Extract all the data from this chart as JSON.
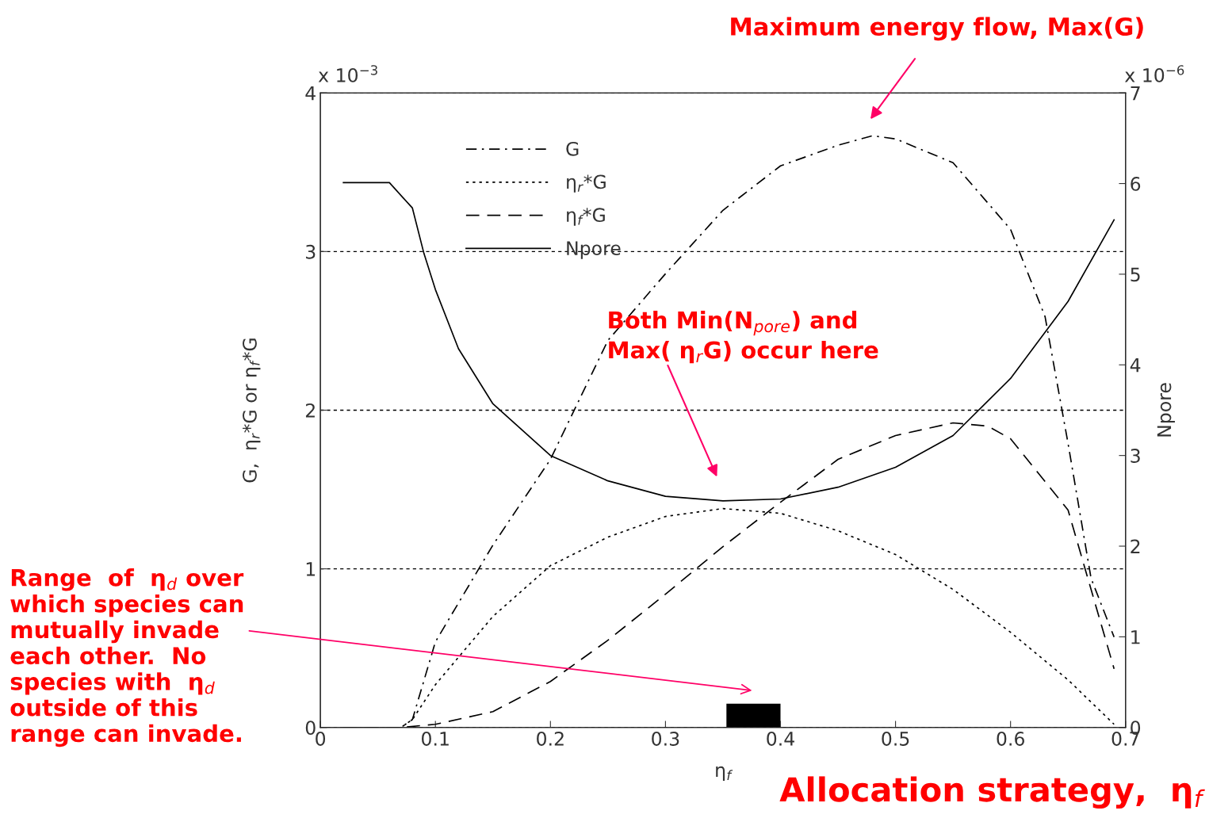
{
  "chart_data": {
    "type": "line",
    "xlabel": "η$_{f}$",
    "ylabel": "G,  η$_{r}$*G or η$_{f}$*G",
    "y2label": "Npore",
    "xlim": [
      0,
      0.7
    ],
    "xticks": [
      0,
      0.1,
      0.2,
      0.3,
      0.4,
      0.5,
      0.6,
      0.7
    ],
    "ylim": [
      0,
      4
    ],
    "yticks": [
      0,
      1,
      2,
      3,
      4
    ],
    "y2lim": [
      0,
      7
    ],
    "y2ticks": [
      0,
      1,
      2,
      3,
      4,
      5,
      6,
      7
    ],
    "grid": "y",
    "legend": "top left",
    "marker": "none",
    "series": [
      {
        "name": "G",
        "color": "#000000",
        "line_style": "dashdot",
        "x": [
          0.02,
          0.07,
          0.08,
          0.1,
          0.15,
          0.2,
          0.25,
          0.3,
          0.35,
          0.4,
          0.45,
          0.48,
          0.5,
          0.55,
          0.6,
          0.63,
          0.65,
          0.67,
          0.69
        ],
        "values": [
          0,
          0,
          0.05,
          0.54,
          1.15,
          1.69,
          2.44,
          2.86,
          3.26,
          3.54,
          3.67,
          3.73,
          3.71,
          3.56,
          3.14,
          2.59,
          1.79,
          0.94,
          0.57
        ]
      },
      {
        "name": "η$_{r}$*G",
        "color": "#000000",
        "line_style": "dotted",
        "x": [
          0.02,
          0.07,
          0.08,
          0.1,
          0.15,
          0.2,
          0.25,
          0.3,
          0.35,
          0.4,
          0.45,
          0.5,
          0.55,
          0.6,
          0.65,
          0.69
        ],
        "values": [
          0,
          0,
          0.05,
          0.27,
          0.7,
          1.02,
          1.2,
          1.33,
          1.38,
          1.35,
          1.24,
          1.09,
          0.87,
          0.6,
          0.3,
          0.02
        ]
      },
      {
        "name": "η$_{f}$*G",
        "color": "#000000",
        "line_style": "dashed",
        "x": [
          0.02,
          0.07,
          0.1,
          0.15,
          0.2,
          0.25,
          0.3,
          0.35,
          0.4,
          0.45,
          0.5,
          0.55,
          0.58,
          0.6,
          0.65,
          0.69
        ],
        "values": [
          0,
          0,
          0.02,
          0.1,
          0.29,
          0.55,
          0.84,
          1.14,
          1.42,
          1.69,
          1.84,
          1.92,
          1.9,
          1.82,
          1.37,
          0.37
        ]
      },
      {
        "type": "bar",
        "color": "#000000",
        "x": [
          0.3765
        ],
        "values": [
          0.15
        ]
      },
      {
        "name": "Npore",
        "color": "#000000",
        "line_style": "solid",
        "axis": "y2",
        "x": [
          0.02,
          0.06,
          0.08,
          0.09,
          0.1,
          0.12,
          0.15,
          0.2,
          0.25,
          0.3,
          0.35,
          0.4,
          0.45,
          0.5,
          0.55,
          0.6,
          0.65,
          0.69
        ],
        "values": [
          6.01,
          6.01,
          5.73,
          5.23,
          4.83,
          4.18,
          3.57,
          3.0,
          2.72,
          2.55,
          2.5,
          2.52,
          2.65,
          2.87,
          3.22,
          3.85,
          4.7,
          5.6
        ]
      }
    ],
    "annotations": [
      "x 10$^{−3}$",
      "x 10$^{−6}$",
      "Maximum energy flow, Max(G)",
      "Both Min(N$_{pore}$) and\nMax( η$_{r}$G) occur here",
      "Range  of  η$_{d}$ over\nwhich species can\nmutually invade\neach other.  No\nspecies with  η$_{d}$\noutside of this\nrange can invade.",
      "Allocation strategy,  η$_{f}$"
    ]
  }
}
